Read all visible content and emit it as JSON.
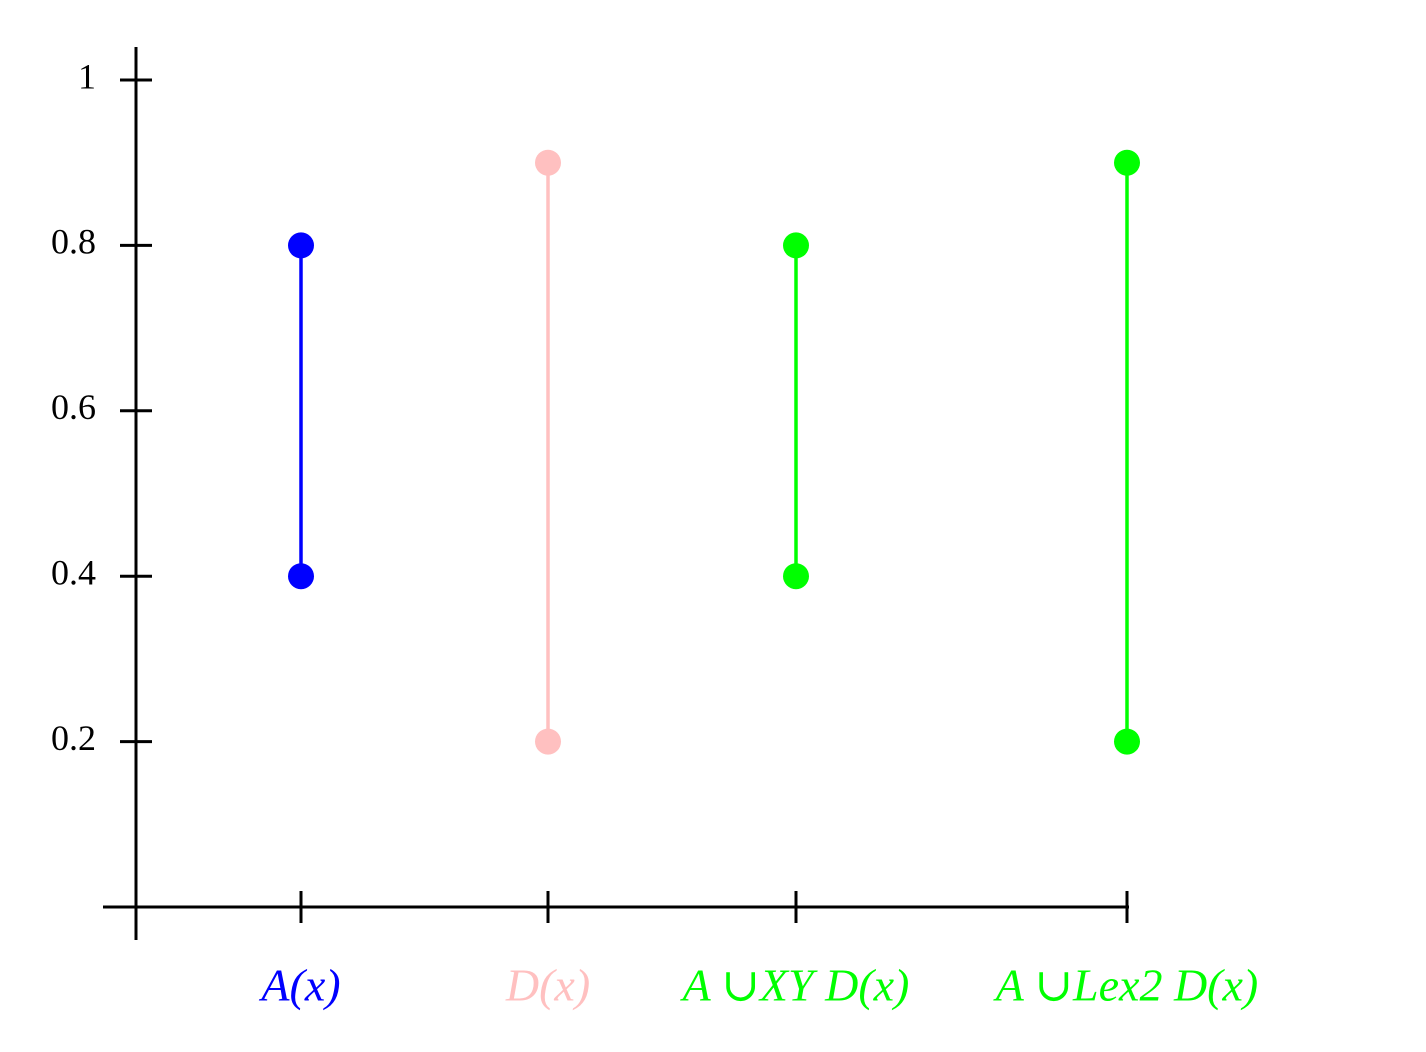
{
  "chart_data": {
    "type": "interval",
    "categories": [
      "A(x)",
      "D(x)",
      "A ∪XY D(x)",
      "A ∪Lex2 D(x)"
    ],
    "low": [
      0.4,
      0.2,
      0.4,
      0.2
    ],
    "high": [
      0.8,
      0.9,
      0.8,
      0.9
    ],
    "colors": [
      "#0000ff",
      "#ffc0c0",
      "#00ff00",
      "#00ff00"
    ],
    "ylim": [
      0,
      1
    ],
    "yticks": [
      0.2,
      0.4,
      0.6,
      0.8,
      1
    ]
  }
}
